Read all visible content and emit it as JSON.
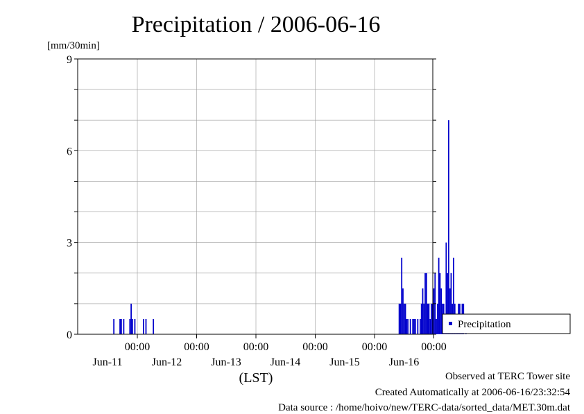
{
  "chart_data": {
    "type": "bar",
    "title": "Precipitation / 2006-06-16",
    "ylabel": "[mm/30min]",
    "xlabel": "(LST)",
    "ylim": [
      0,
      9
    ],
    "yticks": [
      0,
      3,
      6,
      9
    ],
    "xlim_days": [
      0,
      6
    ],
    "x_ticks": [
      {
        "day": 1,
        "time": "00:00",
        "date": "Jun-11"
      },
      {
        "day": 2,
        "time": "00:00",
        "date": "Jun-12"
      },
      {
        "day": 3,
        "time": "00:00",
        "date": "Jun-13"
      },
      {
        "day": 4,
        "time": "00:00",
        "date": "Jun-14"
      },
      {
        "day": 5,
        "time": "00:00",
        "date": "Jun-15"
      },
      {
        "day": 6,
        "time": "00:00",
        "date": "Jun-16"
      }
    ],
    "grid": true,
    "legend_position": "right",
    "series": [
      {
        "name": "Precipitation",
        "color": "#0000cc",
        "points": [
          [
            "2006-06-10 14:30",
            0.5
          ],
          [
            "2006-06-10 17:00",
            0.5
          ],
          [
            "2006-06-10 17:30",
            0.5
          ],
          [
            "2006-06-10 18:30",
            0.5
          ],
          [
            "2006-06-10 21:00",
            0.5
          ],
          [
            "2006-06-10 21:30",
            1.0
          ],
          [
            "2006-06-10 22:00",
            0.5
          ],
          [
            "2006-06-10 23:00",
            0.5
          ],
          [
            "2006-06-11 02:30",
            0.5
          ],
          [
            "2006-06-11 03:30",
            0.5
          ],
          [
            "2006-06-11 06:30",
            0.5
          ],
          [
            "2006-06-15 10:00",
            1.0
          ],
          [
            "2006-06-15 10:30",
            1.0
          ],
          [
            "2006-06-15 11:00",
            2.5
          ],
          [
            "2006-06-15 11:30",
            1.5
          ],
          [
            "2006-06-15 12:00",
            1.0
          ],
          [
            "2006-06-15 12:30",
            1.0
          ],
          [
            "2006-06-15 13:00",
            0.5
          ],
          [
            "2006-06-15 13:30",
            0.5
          ],
          [
            "2006-06-15 14:30",
            0.5
          ],
          [
            "2006-06-15 15:30",
            0.5
          ],
          [
            "2006-06-15 16:00",
            0.5
          ],
          [
            "2006-06-15 16:30",
            0.5
          ],
          [
            "2006-06-15 17:30",
            0.5
          ],
          [
            "2006-06-15 18:30",
            0.5
          ],
          [
            "2006-06-15 19:00",
            1.0
          ],
          [
            "2006-06-15 19:30",
            1.5
          ],
          [
            "2006-06-15 20:00",
            1.0
          ],
          [
            "2006-06-15 20:30",
            2.0
          ],
          [
            "2006-06-15 21:00",
            2.0
          ],
          [
            "2006-06-15 21:30",
            1.0
          ],
          [
            "2006-06-15 22:00",
            1.0
          ],
          [
            "2006-06-15 22:30",
            0.5
          ],
          [
            "2006-06-15 23:00",
            1.0
          ],
          [
            "2006-06-15 23:30",
            1.0
          ],
          [
            "2006-06-16 00:00",
            1.5
          ],
          [
            "2006-06-16 00:30",
            2.0
          ],
          [
            "2006-06-16 01:00",
            0.5
          ],
          [
            "2006-06-16 01:30",
            1.0
          ],
          [
            "2006-06-16 02:00",
            2.5
          ],
          [
            "2006-06-16 02:30",
            2.0
          ],
          [
            "2006-06-16 03:00",
            1.5
          ],
          [
            "2006-06-16 03:30",
            1.0
          ],
          [
            "2006-06-16 04:00",
            1.0
          ],
          [
            "2006-06-16 04:30",
            0.5
          ],
          [
            "2006-06-16 05:00",
            3.0
          ],
          [
            "2006-06-16 05:30",
            2.0
          ],
          [
            "2006-06-16 06:00",
            7.0
          ],
          [
            "2006-06-16 06:30",
            1.5
          ],
          [
            "2006-06-16 07:00",
            2.0
          ],
          [
            "2006-06-16 07:30",
            1.0
          ],
          [
            "2006-06-16 08:00",
            2.5
          ],
          [
            "2006-06-16 08:30",
            1.0
          ],
          [
            "2006-06-16 09:00",
            0.5
          ],
          [
            "2006-06-16 09:30",
            0.5
          ],
          [
            "2006-06-16 10:00",
            1.0
          ],
          [
            "2006-06-16 10:30",
            1.0
          ],
          [
            "2006-06-16 11:00",
            0.5
          ],
          [
            "2006-06-16 11:30",
            1.0
          ],
          [
            "2006-06-16 12:00",
            1.0
          ],
          [
            "2006-06-16 13:00",
            0.5
          ]
        ]
      }
    ]
  },
  "footer": {
    "line1": "Observed at TERC Tower site",
    "line2": "Created Automatically at 2006-06-16/23:32:54",
    "line3": "Data source : /home/hoivo/new/TERC-data/sorted_data/MET.30m.dat"
  }
}
